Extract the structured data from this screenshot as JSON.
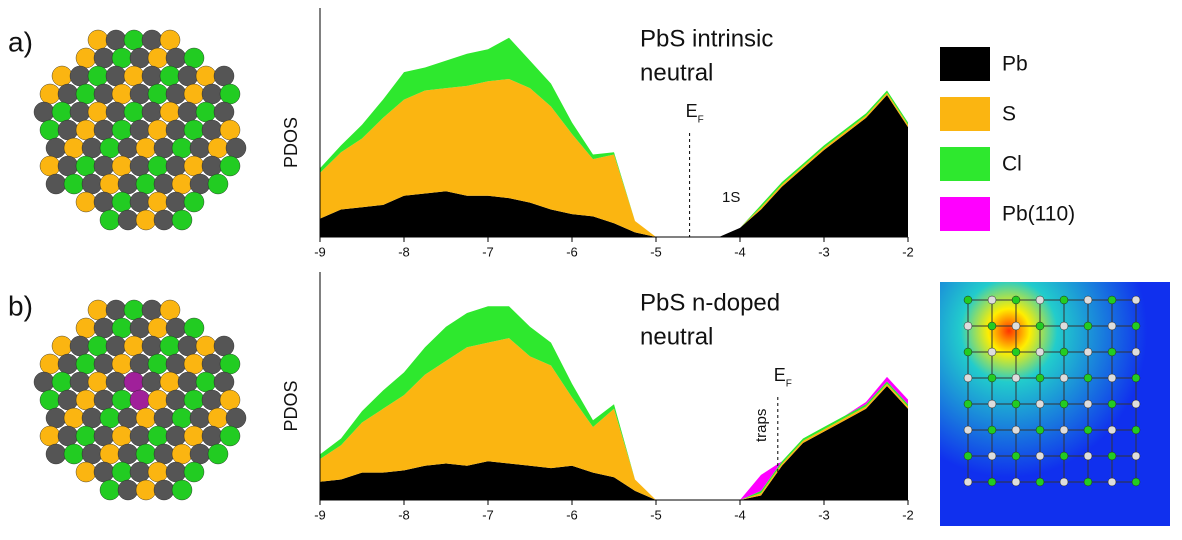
{
  "chart_data": [
    {
      "type": "stacked-area",
      "panel_label": "a)",
      "title_lines": [
        "PbS intrinsic",
        "neutral"
      ],
      "y_label": "PDOS",
      "fermi_level": {
        "label": "E",
        "subscript": "F",
        "x": -4.6
      },
      "annotation": "1S",
      "legend": "right",
      "x": [
        -9,
        -8.75,
        -8.5,
        -8.25,
        -8,
        -7.75,
        -7.5,
        -7.25,
        -7,
        -6.75,
        -6.5,
        -6.25,
        -6,
        -5.75,
        -5.5,
        -5.25,
        -5,
        -4.75,
        -4.5,
        -4.25,
        -4,
        -3.75,
        -3.5,
        -3.25,
        -3,
        -2.75,
        -2.5,
        -2.25,
        -2
      ],
      "xlim": [
        -9,
        -2
      ],
      "xticks": [
        -9,
        -8,
        -7,
        -6,
        -5,
        -4,
        -3,
        -2
      ],
      "ylim": [
        0,
        100
      ],
      "series": [
        {
          "name": "Pb",
          "color": "#000000",
          "values": [
            8,
            12,
            13,
            14,
            18,
            19,
            20,
            18,
            18,
            17,
            15,
            12,
            10,
            9,
            6,
            2,
            0,
            0,
            0,
            0,
            4,
            12,
            22,
            30,
            38,
            45,
            52,
            62,
            48
          ]
        },
        {
          "name": "S",
          "color": "#fbb511",
          "values": [
            20,
            25,
            30,
            38,
            42,
            45,
            45,
            48,
            50,
            52,
            50,
            45,
            35,
            25,
            30,
            5,
            0,
            0,
            0,
            0,
            0,
            1,
            1,
            1,
            1,
            1,
            1,
            1,
            1
          ]
        },
        {
          "name": "Cl",
          "color": "#2ee82e",
          "values": [
            2,
            3,
            6,
            8,
            12,
            10,
            12,
            14,
            14,
            18,
            12,
            10,
            5,
            2,
            1,
            0,
            0,
            0,
            0,
            0,
            0,
            1,
            1,
            1,
            1,
            1,
            1,
            1,
            1
          ]
        },
        {
          "name": "Pb(110)",
          "color": "#ff00ff",
          "values": [
            0,
            0,
            0,
            0,
            0,
            0,
            0,
            0,
            0,
            0,
            0,
            0,
            0,
            0,
            0,
            0,
            0,
            0,
            0,
            0,
            0,
            0,
            0,
            0,
            0,
            0,
            0,
            0,
            0
          ]
        }
      ]
    },
    {
      "type": "stacked-area",
      "panel_label": "b)",
      "title_lines": [
        "PbS n-doped",
        "neutral"
      ],
      "y_label": "PDOS",
      "fermi_level": {
        "label": "E",
        "subscript": "F",
        "x": -3.55
      },
      "annotation": "traps",
      "x": [
        -9,
        -8.75,
        -8.5,
        -8.25,
        -8,
        -7.75,
        -7.5,
        -7.25,
        -7,
        -6.75,
        -6.5,
        -6.25,
        -6,
        -5.75,
        -5.5,
        -5.25,
        -5,
        -4.75,
        -4.5,
        -4.25,
        -4,
        -3.75,
        -3.5,
        -3.25,
        -3,
        -2.75,
        -2.5,
        -2.25,
        -2
      ],
      "xlim": [
        -9,
        -2
      ],
      "xticks": [
        -9,
        -8,
        -7,
        -6,
        -5,
        -4,
        -3,
        -2
      ],
      "ylim": [
        0,
        100
      ],
      "series": [
        {
          "name": "Pb",
          "color": "#000000",
          "values": [
            8,
            9,
            12,
            12,
            13,
            15,
            16,
            15,
            17,
            16,
            15,
            14,
            15,
            12,
            10,
            4,
            0,
            0,
            0,
            0,
            0,
            2,
            15,
            25,
            30,
            35,
            40,
            50,
            40
          ]
        },
        {
          "name": "S",
          "color": "#fbb511",
          "values": [
            10,
            15,
            22,
            28,
            33,
            40,
            45,
            52,
            52,
            55,
            48,
            45,
            30,
            20,
            30,
            5,
            0,
            0,
            0,
            0,
            0,
            1,
            1,
            1,
            1,
            1,
            1,
            1,
            1
          ]
        },
        {
          "name": "Cl",
          "color": "#2ee82e",
          "values": [
            2,
            3,
            5,
            8,
            10,
            12,
            15,
            15,
            16,
            14,
            13,
            10,
            6,
            3,
            2,
            0,
            0,
            0,
            0,
            0,
            0,
            1,
            1,
            1,
            1,
            1,
            1,
            1,
            1
          ]
        },
        {
          "name": "Pb(110)",
          "color": "#ff00ff",
          "values": [
            0,
            0,
            0,
            0,
            0,
            0,
            0,
            0,
            0,
            0,
            0,
            0,
            0,
            0,
            0,
            0,
            0,
            0,
            0,
            0,
            0,
            7,
            0,
            0,
            0,
            0,
            1,
            2,
            2
          ]
        }
      ]
    }
  ]
}
